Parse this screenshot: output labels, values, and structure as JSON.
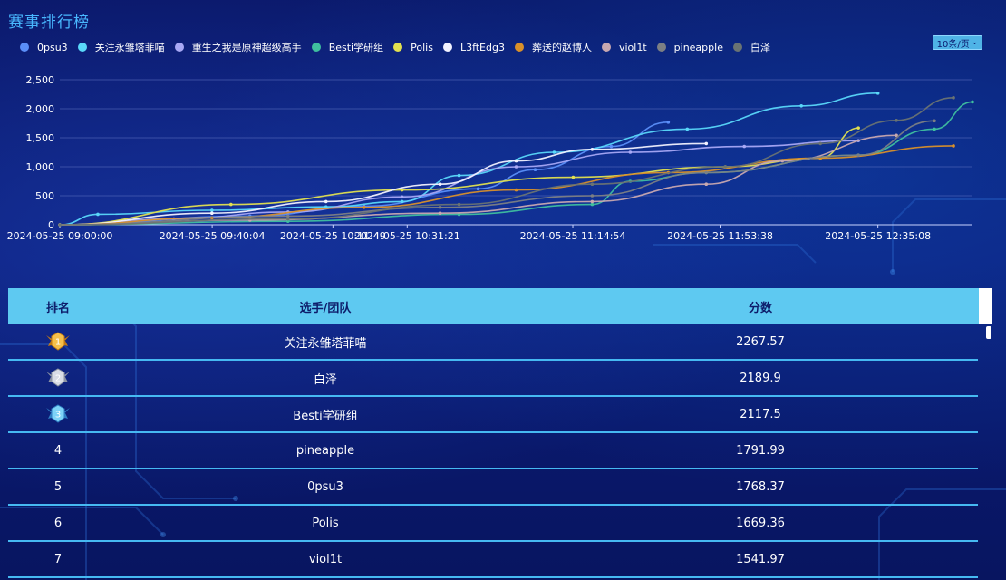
{
  "title": "赛事排行榜",
  "page_size_label": "10条/页",
  "legend": [
    {
      "name": "0psu3",
      "color": "#5b8ff9"
    },
    {
      "name": "关注永雏塔菲喵",
      "color": "#5ad8fa"
    },
    {
      "name": "重生之我是原神超级高手",
      "color": "#a8a8f5"
    },
    {
      "name": "Besti学研组",
      "color": "#3fbf9f"
    },
    {
      "name": "Polis",
      "color": "#e2e04f"
    },
    {
      "name": "L3ftEdg3",
      "color": "#f2f2ff"
    },
    {
      "name": "葬送的赵博人",
      "color": "#d9902a"
    },
    {
      "name": "viol1t",
      "color": "#c8a8b0"
    },
    {
      "name": "pineapple",
      "color": "#7c7f84"
    },
    {
      "name": "白泽",
      "color": "#6a7373"
    }
  ],
  "table": {
    "headers": {
      "rank": "排名",
      "name": "选手/团队",
      "score": "分数"
    },
    "rows": [
      {
        "rank": "1",
        "name": "关注永雏塔菲喵",
        "score": "2267.57",
        "medal": "gold"
      },
      {
        "rank": "2",
        "name": "白泽",
        "score": "2189.9",
        "medal": "silver"
      },
      {
        "rank": "3",
        "name": "Besti学研组",
        "score": "2117.5",
        "medal": "blue"
      },
      {
        "rank": "4",
        "name": "pineapple",
        "score": "1791.99"
      },
      {
        "rank": "5",
        "name": "0psu3",
        "score": "1768.37"
      },
      {
        "rank": "6",
        "name": "Polis",
        "score": "1669.36"
      },
      {
        "rank": "7",
        "name": "viol1t",
        "score": "1541.97"
      }
    ]
  },
  "chart_data": {
    "type": "line",
    "x_type": "time",
    "x_tick_labels": [
      "2024-05-25 09:00:00",
      "2024-05-25 09:40:04",
      "2024-05-25 10:11:49",
      "2024-05-25 10:31:21",
      "2024-05-25 11:14:54",
      "2024-05-25 11:53:38",
      "2024-05-25 12:35:08"
    ],
    "x_ticks": [
      "2024-05-25 09:00:00",
      "2024-05-25 09:40:04",
      "2024-05-25 10:11:49",
      "2024-05-25 10:31:21",
      "2024-05-25 11:14:54",
      "2024-05-25 11:53:38",
      "2024-05-25 12:35:08"
    ],
    "xlim": [
      "2024-05-25 09:00:00",
      "2024-05-25 13:00:00"
    ],
    "ylim": [
      0,
      2500
    ],
    "y_ticks": [
      0,
      500,
      1000,
      1500,
      2000,
      2500
    ],
    "y_tick_labels": [
      "0",
      "500",
      "1,000",
      "1,500",
      "2,000",
      "2,500"
    ],
    "grid": true,
    "legend_position": "top",
    "series": [
      {
        "name": "0psu3",
        "x": [
          "2024-05-25 09:00:00",
          "2024-05-25 09:50:00",
          "2024-05-25 10:20:00",
          "2024-05-25 10:50:00",
          "2024-05-25 11:05:00",
          "2024-05-25 11:25:00",
          "2024-05-25 11:40:00"
        ],
        "y": [
          0,
          150,
          320,
          620,
          950,
          1350,
          1768
        ]
      },
      {
        "name": "关注永雏塔菲喵",
        "x": [
          "2024-05-25 09:00:00",
          "2024-05-25 09:10:00",
          "2024-05-25 09:40:00",
          "2024-05-25 10:10:00",
          "2024-05-25 10:30:00",
          "2024-05-25 10:45:00",
          "2024-05-25 11:10:00",
          "2024-05-25 11:45:00",
          "2024-05-25 12:15:00",
          "2024-05-25 12:35:08"
        ],
        "y": [
          0,
          180,
          250,
          310,
          400,
          850,
          1250,
          1650,
          2050,
          2268
        ]
      },
      {
        "name": "重生之我是原神超级高手",
        "x": [
          "2024-05-25 09:00:00",
          "2024-05-25 09:30:00",
          "2024-05-25 10:00:00",
          "2024-05-25 10:30:00",
          "2024-05-25 11:00:00",
          "2024-05-25 11:30:00",
          "2024-05-25 12:00:00",
          "2024-05-25 12:30:00"
        ],
        "y": [
          0,
          100,
          220,
          480,
          1000,
          1250,
          1350,
          1450
        ]
      },
      {
        "name": "Besti学研组",
        "x": [
          "2024-05-25 09:00:00",
          "2024-05-25 10:00:00",
          "2024-05-25 10:45:00",
          "2024-05-25 11:20:00",
          "2024-05-25 11:30:00",
          "2024-05-25 11:50:00",
          "2024-05-25 12:30:00",
          "2024-05-25 12:50:00",
          "2024-05-25 13:00:00"
        ],
        "y": [
          0,
          60,
          180,
          350,
          750,
          900,
          1200,
          1650,
          2118
        ]
      },
      {
        "name": "Polis",
        "x": [
          "2024-05-25 09:00:00",
          "2024-05-25 09:45:00",
          "2024-05-25 10:30:00",
          "2024-05-25 11:15:00",
          "2024-05-25 11:55:00",
          "2024-05-25 12:20:00",
          "2024-05-25 12:30:00"
        ],
        "y": [
          0,
          350,
          600,
          820,
          1000,
          1150,
          1669
        ]
      },
      {
        "name": "L3ftEdg3",
        "x": [
          "2024-05-25 09:00:00",
          "2024-05-25 09:40:00",
          "2024-05-25 10:10:00",
          "2024-05-25 10:40:00",
          "2024-05-25 11:00:00",
          "2024-05-25 11:20:00",
          "2024-05-25 11:50:00"
        ],
        "y": [
          0,
          200,
          400,
          700,
          1100,
          1300,
          1400
        ]
      },
      {
        "name": "葬送的赵博人",
        "x": [
          "2024-05-25 09:00:00",
          "2024-05-25 09:40:00",
          "2024-05-25 10:20:00",
          "2024-05-25 11:00:00",
          "2024-05-25 11:40:00",
          "2024-05-25 12:20:00",
          "2024-05-25 12:55:00"
        ],
        "y": [
          0,
          120,
          300,
          600,
          900,
          1150,
          1360
        ]
      },
      {
        "name": "viol1t",
        "x": [
          "2024-05-25 09:00:00",
          "2024-05-25 09:50:00",
          "2024-05-25 10:40:00",
          "2024-05-25 11:20:00",
          "2024-05-25 11:50:00",
          "2024-05-25 12:10:00",
          "2024-05-25 12:40:00"
        ],
        "y": [
          0,
          80,
          200,
          400,
          700,
          1100,
          1542
        ]
      },
      {
        "name": "pineapple",
        "x": [
          "2024-05-25 09:00:00",
          "2024-05-25 10:00:00",
          "2024-05-25 10:40:00",
          "2024-05-25 11:20:00",
          "2024-05-25 11:50:00",
          "2024-05-25 12:30:00",
          "2024-05-25 12:50:00"
        ],
        "y": [
          0,
          150,
          300,
          500,
          900,
          1200,
          1792
        ]
      },
      {
        "name": "白泽",
        "x": [
          "2024-05-25 09:00:00",
          "2024-05-25 10:00:00",
          "2024-05-25 10:45:00",
          "2024-05-25 11:20:00",
          "2024-05-25 11:55:00",
          "2024-05-25 12:20:00",
          "2024-05-25 12:40:00",
          "2024-05-25 12:55:00"
        ],
        "y": [
          0,
          100,
          350,
          700,
          1000,
          1400,
          1800,
          2190
        ]
      }
    ]
  }
}
